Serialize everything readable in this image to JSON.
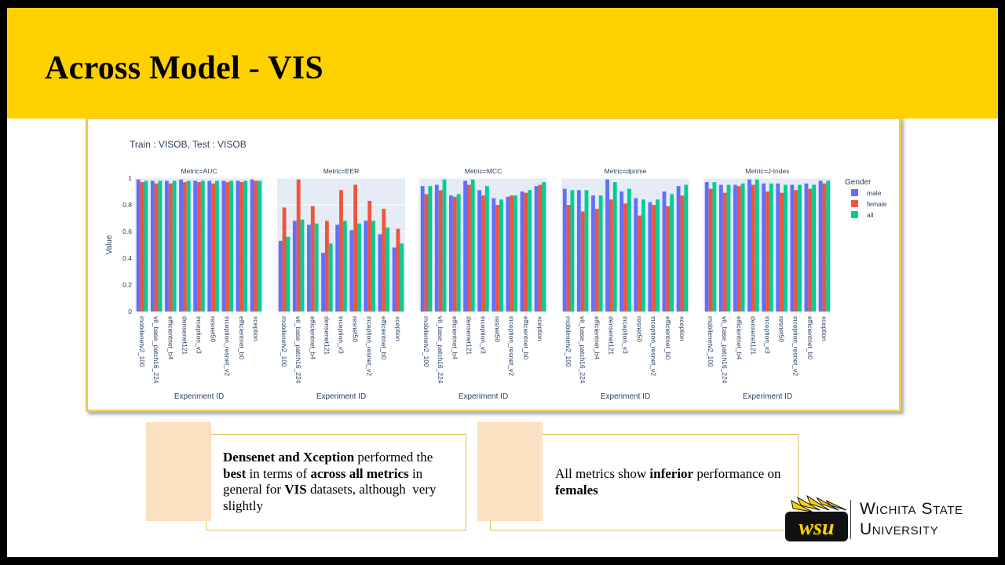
{
  "slide": {
    "title": "Across Model - VIS",
    "brand_color": "#FFD100",
    "accent_border": "#F2C94C"
  },
  "chart_data": {
    "type": "bar",
    "title": "Train : VISOB, Test : VISOB",
    "ylabel": "Value",
    "xlabel": "Experiment ID",
    "ylim": [
      0,
      1
    ],
    "yticks": [
      "0",
      "0.2",
      "0.4",
      "0.6",
      "0.8",
      "1"
    ],
    "legend": {
      "title": "Gender",
      "placement": "right"
    },
    "series_colors": {
      "male": "#636EFA",
      "female": "#EF553B",
      "all": "#00CC96"
    },
    "categories": [
      "mobilenetv2_100",
      "vit_base_patch16_224",
      "efficientnet_b4",
      "densenet121",
      "inception_v3",
      "resnet50",
      "inception_resnet_v2",
      "efficientnet_b0",
      "xception"
    ],
    "panels": [
      {
        "metric": "Metric=AUC",
        "series": [
          {
            "name": "male",
            "values": [
              0.99,
              0.98,
              0.98,
              0.99,
              0.98,
              0.98,
              0.98,
              0.98,
              0.99
            ]
          },
          {
            "name": "female",
            "values": [
              0.97,
              0.96,
              0.96,
              0.97,
              0.97,
              0.96,
              0.97,
              0.97,
              0.98
            ]
          },
          {
            "name": "all",
            "values": [
              0.98,
              0.98,
              0.98,
              0.98,
              0.98,
              0.98,
              0.98,
              0.98,
              0.98
            ]
          }
        ]
      },
      {
        "metric": "Metric=EER",
        "series": [
          {
            "name": "male",
            "values": [
              0.53,
              0.68,
              0.65,
              0.44,
              0.65,
              0.61,
              0.68,
              0.58,
              0.48
            ]
          },
          {
            "name": "female",
            "values": [
              0.78,
              0.99,
              0.79,
              0.68,
              0.91,
              0.95,
              0.83,
              0.77,
              0.62
            ]
          },
          {
            "name": "all",
            "values": [
              0.56,
              0.69,
              0.66,
              0.51,
              0.68,
              0.66,
              0.68,
              0.63,
              0.51
            ]
          }
        ]
      },
      {
        "metric": "Metric=MCC",
        "series": [
          {
            "name": "male",
            "values": [
              0.94,
              0.95,
              0.87,
              0.98,
              0.91,
              0.85,
              0.86,
              0.9,
              0.94
            ]
          },
          {
            "name": "female",
            "values": [
              0.88,
              0.91,
              0.86,
              0.95,
              0.87,
              0.8,
              0.87,
              0.89,
              0.95
            ]
          },
          {
            "name": "all",
            "values": [
              0.94,
              0.99,
              0.88,
              0.99,
              0.94,
              0.84,
              0.87,
              0.91,
              0.97
            ]
          }
        ]
      },
      {
        "metric": "Metric=dprime",
        "series": [
          {
            "name": "male",
            "values": [
              0.92,
              0.91,
              0.87,
              0.99,
              0.9,
              0.85,
              0.82,
              0.9,
              0.94
            ]
          },
          {
            "name": "female",
            "values": [
              0.8,
              0.75,
              0.77,
              0.84,
              0.81,
              0.72,
              0.8,
              0.79,
              0.87
            ]
          },
          {
            "name": "all",
            "values": [
              0.91,
              0.91,
              0.87,
              0.97,
              0.92,
              0.84,
              0.84,
              0.88,
              0.95
            ]
          }
        ]
      },
      {
        "metric": "Metric=J-Index",
        "series": [
          {
            "name": "male",
            "values": [
              0.97,
              0.95,
              0.95,
              0.99,
              0.96,
              0.96,
              0.95,
              0.96,
              0.98
            ]
          },
          {
            "name": "female",
            "values": [
              0.92,
              0.89,
              0.94,
              0.95,
              0.9,
              0.89,
              0.91,
              0.92,
              0.96
            ]
          },
          {
            "name": "all",
            "values": [
              0.97,
              0.95,
              0.96,
              0.99,
              0.96,
              0.95,
              0.95,
              0.95,
              0.98
            ]
          }
        ]
      }
    ]
  },
  "callouts": [
    {
      "text_html": "<b>Densenet and Xception</b> performed the <b>best</b> in terms of <b>across all metrics</b> in general for <b>VIS</b> datasets, although &nbsp;very slightly"
    },
    {
      "text_html": "All metrics show <b>inferior</b> performance on <b>females</b>"
    }
  ],
  "logo": {
    "line1": "Wichita State",
    "line2": "University",
    "mark_text": "wsu"
  }
}
